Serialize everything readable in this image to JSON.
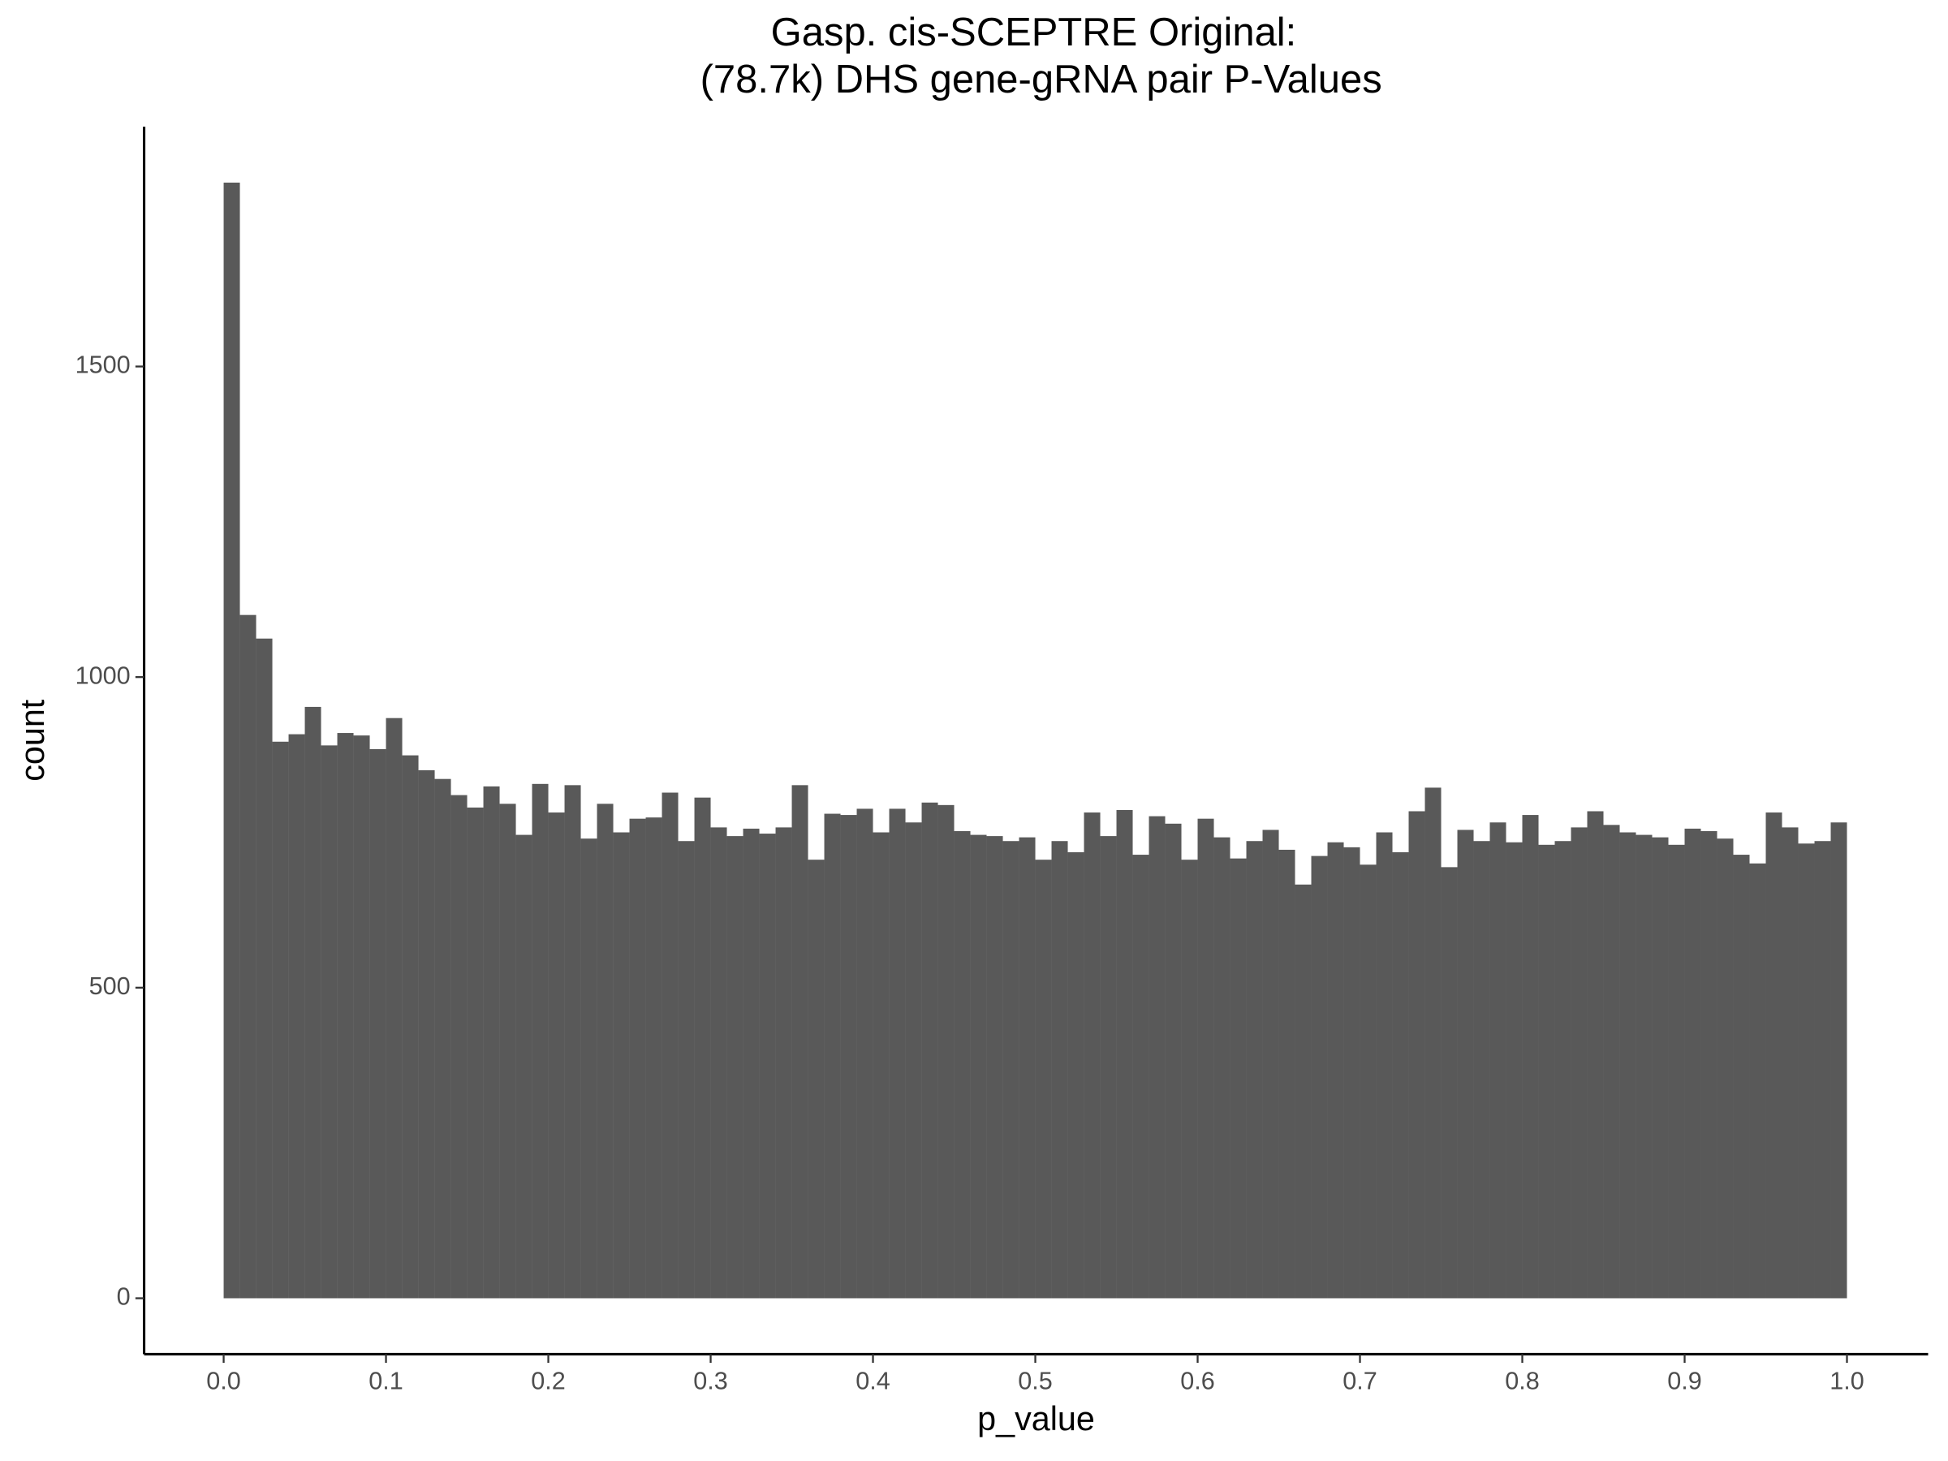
{
  "chart_data": {
    "type": "histogram",
    "title": [
      "Gasp. cis-SCEPTRE Original:",
      "(78.7k) DHS gene-gRNA pair P-Values"
    ],
    "x_label": "p_value",
    "y_label": "count",
    "color": "#595959",
    "bins": [
      0,
      0.01,
      0.02,
      0.03,
      0.04,
      0.05,
      0.06,
      0.07,
      0.08,
      0.09,
      0.1,
      0.11,
      0.12,
      0.13,
      0.14,
      0.15,
      0.16,
      0.17,
      0.18,
      0.19,
      0.2,
      0.21,
      0.22,
      0.23,
      0.24,
      0.25,
      0.26,
      0.27,
      0.28,
      0.29,
      0.3,
      0.31,
      0.32,
      0.33,
      0.34,
      0.35,
      0.36,
      0.37,
      0.38,
      0.39,
      0.4,
      0.41,
      0.42,
      0.43,
      0.44,
      0.45,
      0.46,
      0.47,
      0.48,
      0.49,
      0.5,
      0.51,
      0.52,
      0.53,
      0.54,
      0.55,
      0.56,
      0.57,
      0.58,
      0.59,
      0.6,
      0.61,
      0.62,
      0.63,
      0.64,
      0.65,
      0.66,
      0.67,
      0.68,
      0.69,
      0.7,
      0.71,
      0.72,
      0.73,
      0.74,
      0.75,
      0.76,
      0.77,
      0.78,
      0.79,
      0.8,
      0.81,
      0.82,
      0.83,
      0.84,
      0.85,
      0.86,
      0.87,
      0.88,
      0.89,
      0.9,
      0.91,
      0.92,
      0.93,
      0.94,
      0.95,
      0.96,
      0.97,
      0.98,
      0.99,
      1
    ],
    "values": [
      1796,
      1100,
      1062,
      896,
      908,
      952,
      890,
      910,
      906,
      884,
      934,
      874,
      850,
      836,
      810,
      790,
      824,
      796,
      746,
      828,
      782,
      826,
      740,
      796,
      750,
      772,
      774,
      814,
      736,
      806,
      758,
      744,
      756,
      748,
      758,
      826,
      706,
      780,
      778,
      788,
      750,
      788,
      766,
      798,
      794,
      752,
      746,
      744,
      736,
      742,
      706,
      736,
      718,
      782,
      744,
      786,
      714,
      776,
      764,
      706,
      772,
      742,
      708,
      736,
      754,
      722,
      666,
      712,
      734,
      726,
      698,
      750,
      718,
      784,
      822,
      694,
      754,
      736,
      766,
      734,
      778,
      730,
      736,
      758,
      784,
      762,
      750,
      746,
      742,
      730,
      756,
      752,
      740,
      714,
      700,
      782,
      758,
      732,
      736,
      766
    ],
    "xlim": [
      -0.049,
      1.05
    ],
    "ylim": [
      -90,
      1886
    ],
    "xticks": [
      {
        "value": 0,
        "label": "0.0"
      },
      0.1,
      0.2,
      0.3,
      0.4,
      0.5,
      0.6,
      0.7,
      0.8,
      0.9,
      {
        "value": 1,
        "label": "1.0"
      }
    ],
    "yticks": [
      0,
      500,
      1000,
      1500
    ]
  }
}
